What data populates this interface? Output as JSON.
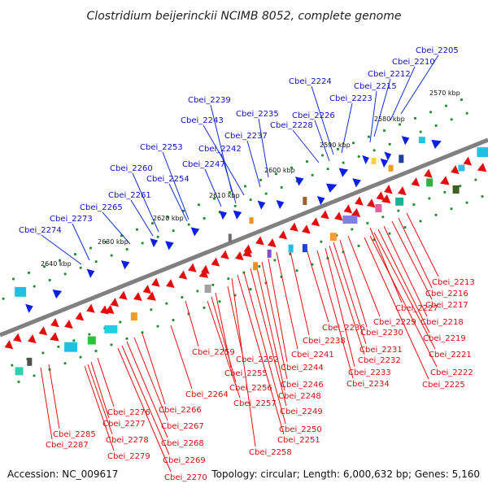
{
  "title": "Clostridium beijerinckii NCIMB 8052, complete genome",
  "footer": {
    "accession": "Accession: NC_009617",
    "info": "Topology: circular; Length: 6,000,632 bp; Genes: 5,160"
  },
  "kbp_markers": [
    "2570 kbp",
    "2580 kbp",
    "2590 kbp",
    "2600 kbp",
    "2610 kbp",
    "2620 kbp",
    "2630 kbp",
    "2640 kbp"
  ],
  "top_labels": [
    "Cbei_2205",
    "Cbei_2210",
    "Cbei_2212",
    "Cbei_2215",
    "Cbei_2224",
    "Cbei_2223",
    "Cbei_2226",
    "Cbei_2228",
    "Cbei_2235",
    "Cbei_2239",
    "Cbei_2243",
    "Cbei_2237",
    "Cbei_2242",
    "Cbei_2253",
    "Cbei_2247",
    "Cbei_2260",
    "Cbei_2254",
    "Cbei_2261",
    "Cbei_2265",
    "Cbei_2273",
    "Cbei_2274"
  ],
  "bottom_labels": [
    "Cbei_2213",
    "Cbei_2216",
    "Cbei_2217",
    "Cbei_2227",
    "Cbei_2218",
    "Cbei_2229",
    "Cbei_2236",
    "Cbei_2219",
    "Cbei_2230",
    "Cbei_2238",
    "Cbei_2221",
    "Cbei_2231",
    "Cbei_2241",
    "Cbei_2259",
    "Cbei_2232",
    "Cbei_2252",
    "Cbei_2222",
    "Cbei_2244",
    "Cbei_2233",
    "Cbei_2255",
    "Cbei_2225",
    "Cbei_2246",
    "Cbei_2234",
    "Cbei_2256",
    "Cbei_2248",
    "Cbei_2264",
    "Cbei_2257",
    "Cbei_2249",
    "Cbei_2266",
    "Cbei_2276",
    "Cbei_2277",
    "Cbei_2267",
    "Cbei_2250",
    "Cbei_2285",
    "Cbei_2251",
    "Cbei_2278",
    "Cbei_2287",
    "Cbei_2268",
    "Cbei_2258",
    "Cbei_2279",
    "Cbei_2269",
    "Cbei_2270"
  ],
  "colors": {
    "backbone": "#808080",
    "top_strand_genes": "#0a1ee6",
    "bottom_strand_genes": "#e60a0a",
    "top_leader": "#1030d0",
    "bottom_leader": "#e81010",
    "tick_dots": "#1a8a2a"
  }
}
